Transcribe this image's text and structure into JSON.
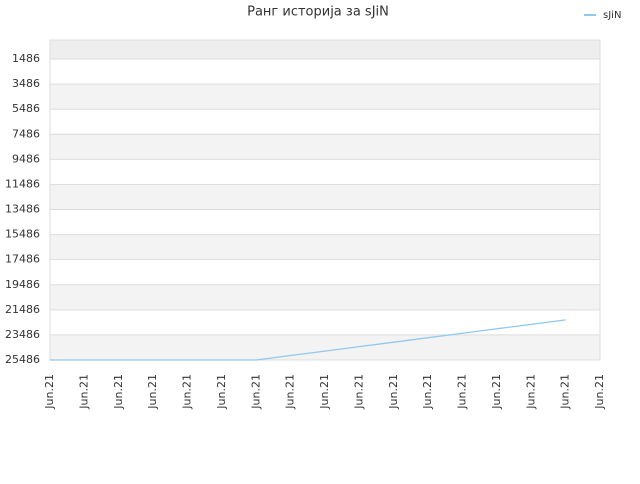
{
  "chart_data": {
    "type": "line",
    "title": "Ранг историја за sJiN",
    "categories": [
      "Jun.21",
      "Jun.21",
      "Jun.21",
      "Jun.21",
      "Jun.21",
      "Jun.21",
      "Jun.21",
      "Jun.21",
      "Jun.21",
      "Jun.21",
      "Jun.21",
      "Jun.21",
      "Jun.21",
      "Jun.21",
      "Jun.21",
      "Jun.21",
      "Jun.21"
    ],
    "series": [
      {
        "name": "sJiN",
        "color": "#90c8ee",
        "values": [
          25486,
          25486,
          25486,
          25486,
          25486,
          25486,
          25486,
          25130,
          24775,
          24419,
          24064,
          23708,
          23353,
          22997,
          22642,
          22286,
          null
        ]
      }
    ],
    "ylim": [
      25486,
      -34
    ],
    "yticks": [
      1486,
      3486,
      5486,
      7486,
      9486,
      11486,
      13486,
      15486,
      17486,
      19486,
      21486,
      23486,
      25486
    ],
    "grid": true,
    "legend": "top-right"
  }
}
